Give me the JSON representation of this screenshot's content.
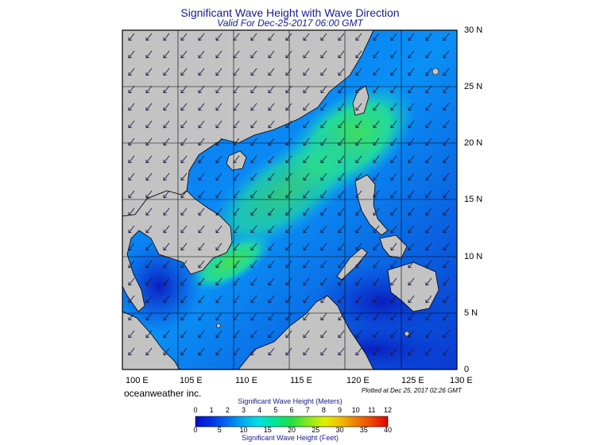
{
  "title": "Significant Wave Height with Wave Direction",
  "subtitle": "Valid For Dec-25-2017 06:00 GMT",
  "credit": "oceanweather inc.",
  "plotted": "Plotted at Dec 25, 2017 02:26 GMT",
  "lon_labels": [
    "100 E",
    "105 E",
    "110 E",
    "115 E",
    "120 E",
    "125 E",
    "130 E"
  ],
  "lat_labels": [
    "30 N",
    "25 N",
    "20 N",
    "15 N",
    "10 N",
    "5 N",
    "0"
  ],
  "legend": {
    "meters_title": "Significant Wave Height (Meters)",
    "feet_title": "Significant Wave Height (Feet)",
    "meters_ticks": [
      "0",
      "1",
      "2",
      "3",
      "4",
      "5",
      "6",
      "7",
      "8",
      "9",
      "10",
      "11",
      "12"
    ],
    "feet_ticks": [
      "0",
      "5",
      "10",
      "15",
      "20",
      "25",
      "30",
      "35",
      "40"
    ]
  },
  "colors": {
    "land": "#c3c3c3",
    "ocean_low": "#0a2cc8",
    "ocean_mid": "#0a7df0",
    "ocean_high": "#3ddc5a",
    "arrow": "#1a1a40"
  },
  "wave_direction": "northeast monsoon, waves propagating toward southwest"
}
